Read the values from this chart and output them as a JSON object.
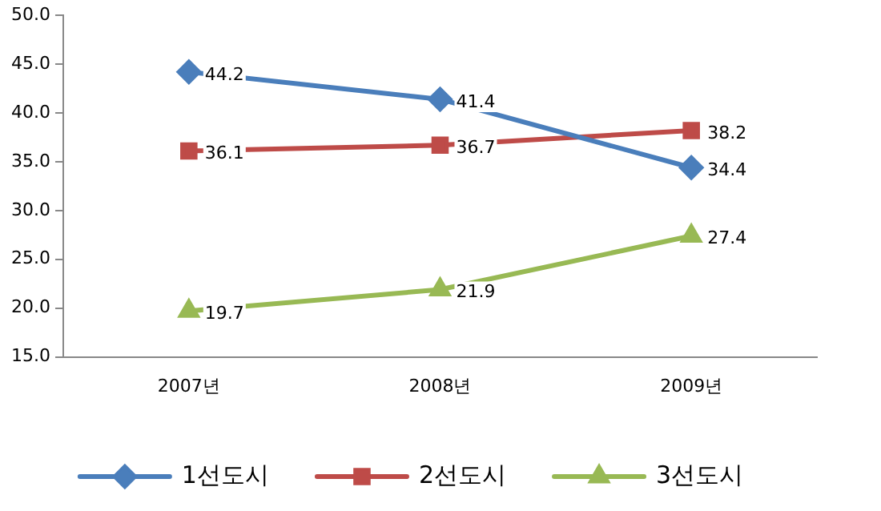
{
  "chart_data": {
    "type": "line",
    "categories": [
      "2007년",
      "2008년",
      "2009년"
    ],
    "series": [
      {
        "name": "1선도시",
        "color": "#4a7ebb",
        "values": [
          44.2,
          41.4,
          34.4
        ],
        "marker": "diamond"
      },
      {
        "name": "2선도시",
        "color": "#be4b48",
        "values": [
          36.1,
          36.7,
          38.2
        ],
        "marker": "square"
      },
      {
        "name": "3선도시",
        "color": "#98b954",
        "values": [
          19.7,
          21.9,
          27.4
        ],
        "marker": "triangle"
      }
    ],
    "ylim": [
      15,
      50
    ],
    "yticks": [
      {
        "value": 15,
        "label": "15.0"
      },
      {
        "value": 20,
        "label": "20.0"
      },
      {
        "value": 25,
        "label": "25.0"
      },
      {
        "value": 30,
        "label": "30.0"
      },
      {
        "value": 35,
        "label": "35.0"
      },
      {
        "value": 40,
        "label": "40.0"
      },
      {
        "value": 45,
        "label": "45.0"
      },
      {
        "value": 50,
        "label": "50.0"
      }
    ],
    "data_labels": true,
    "legend": "bottom",
    "grid": false,
    "line_style": "solid"
  }
}
